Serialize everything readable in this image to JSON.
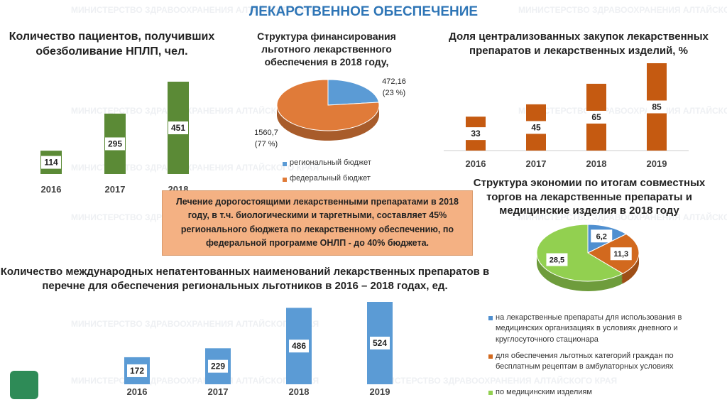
{
  "header": {
    "title": "ЛЕКАРСТВЕННОЕ ОБЕСПЕЧЕНИЕ",
    "watermark": "МИНИСТЕРСТВО ЗДРАВООХРАНЕНИЯ АЛТАЙСКОГО КРАЯ"
  },
  "note": "Лечение дорогостоящими лекарственными препаратами в 2018 году, в т.ч. биологическими и таргетными, составляет 45% регионального бюджета по лекарственному обеспечению, по федеральной программе ОНЛП - до 40% бюджета.",
  "chart_data": [
    {
      "type": "bar",
      "title": "Количество пациентов, получивших обезболивание НПЛП, чел.",
      "categories": [
        "2016",
        "2017",
        "2018"
      ],
      "values": [
        114,
        295,
        451
      ],
      "color": "#5b8a36"
    },
    {
      "type": "pie",
      "title": "Структура финансирования льготного лекарственного обеспечения в 2018 году,",
      "categories": [
        "региональный бюджет",
        "федеральный бюджет"
      ],
      "values": [
        472.16,
        1560.7
      ],
      "value_labels": [
        "472,16",
        "1560,7"
      ],
      "share_labels": [
        "(23 %)",
        "(77 %)"
      ],
      "colors": [
        "#5b9bd5",
        "#e07b39"
      ]
    },
    {
      "type": "bar",
      "title": "Доля централизованных закупок лекарственных препаратов и лекарственных изделий, %",
      "categories": [
        "2016",
        "2017",
        "2018",
        "2019"
      ],
      "values": [
        33,
        45,
        65,
        85
      ],
      "color": "#c55a11"
    },
    {
      "type": "bar",
      "title": "Количество международных непатентованных наименований лекарственных препаратов в перечне для обеспечения региональных льготников в 2016 – 2018 годах, ед.",
      "categories": [
        "2016",
        "2017",
        "2018",
        "2019"
      ],
      "values": [
        172,
        229,
        486,
        524
      ],
      "color": "#5b9bd5"
    },
    {
      "type": "pie",
      "title": "Структура экономии по итогам совместных торгов на лекарственные препараты и медицинские изделия в 2018 году",
      "categories": [
        "на лекарственные препараты для использования в медицинских организациях в условиях дневного и круглосуточного стационара",
        "для обеспечения льготных категорий граждан по бесплатным рецептам в амбулаторных условиях",
        "по медицинским изделиям"
      ],
      "values": [
        6.2,
        11.3,
        28.5
      ],
      "value_labels": [
        "6,2",
        "11,3",
        "28,5"
      ],
      "colors": [
        "#4f8fd0",
        "#d2691e",
        "#92d050"
      ]
    }
  ]
}
